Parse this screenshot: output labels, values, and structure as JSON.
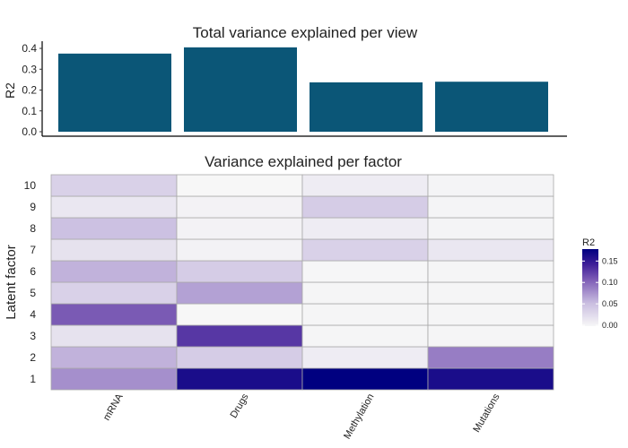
{
  "chart_data": [
    {
      "type": "bar",
      "title": "Total variance explained per view",
      "xlabel": "",
      "ylabel": "R2",
      "categories": [
        "mRNA",
        "Drugs",
        "Methylation",
        "Mutations"
      ],
      "values": [
        0.375,
        0.405,
        0.237,
        0.24
      ],
      "ylim": [
        0,
        0.41
      ],
      "yticks": [
        "0.0",
        "0.1",
        "0.2",
        "0.3",
        "0.4"
      ],
      "bar_color": "#0b5677",
      "grid": false
    },
    {
      "type": "heatmap",
      "title": "Variance explained per factor",
      "xlabel": "",
      "ylabel": "Latent factor",
      "x_categories": [
        "mRNA",
        "Drugs",
        "Methylation",
        "Mutations"
      ],
      "y_categories": [
        "1",
        "2",
        "3",
        "4",
        "5",
        "6",
        "7",
        "8",
        "9",
        "10"
      ],
      "values": [
        [
          0.08,
          0.165,
          0.18,
          0.165
        ],
        [
          0.06,
          0.04,
          0.01,
          0.09
        ],
        [
          0.02,
          0.13,
          0.002,
          0.002
        ],
        [
          0.11,
          0.0,
          0.002,
          0.002
        ],
        [
          0.035,
          0.07,
          0.002,
          0.002
        ],
        [
          0.06,
          0.04,
          0.001,
          0.002
        ],
        [
          0.02,
          0.005,
          0.035,
          0.015
        ],
        [
          0.05,
          0.005,
          0.01,
          0.003
        ],
        [
          0.015,
          0.005,
          0.04,
          0.003
        ],
        [
          0.035,
          0.0,
          0.01,
          0.003
        ]
      ],
      "legend": {
        "title": "R2",
        "ticks": [
          "0.00",
          "0.05",
          "0.10",
          "0.15"
        ],
        "range": [
          0,
          0.18
        ],
        "placement": "right"
      },
      "color_low": "#f7f7f7",
      "color_high": "#000080"
    }
  ]
}
